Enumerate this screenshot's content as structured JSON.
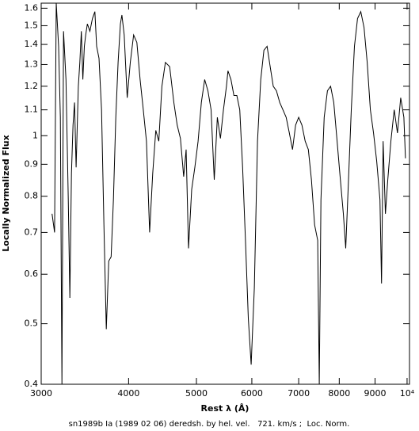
{
  "chart_data": {
    "type": "line",
    "xlabel": "Rest λ (Å)",
    "ylabel": "Locally Normalized Flux",
    "note": "sn1989b Ia (1989 02 06) deredsh. by hel. vel.   721. km/s ;  Loc. Norm.",
    "xlog": true,
    "ylog": true,
    "color": "#000000",
    "xlim": [
      3000,
      10080
    ],
    "ylim": [
      0.4,
      1.63
    ],
    "xticks": [
      3000,
      4000,
      5000,
      6000,
      7000,
      8000,
      9000,
      {
        "value": 10000,
        "label": "10⁴"
      }
    ],
    "yticks": [
      {
        "value": 0.4,
        "label": "0.4"
      },
      {
        "value": 0.5,
        "label": "0.5"
      },
      {
        "value": 0.6,
        "label": "0.6"
      },
      {
        "value": 0.7,
        "label": "0.7"
      },
      {
        "value": 0.8,
        "label": "0.8"
      },
      {
        "value": 0.9,
        "label": "0.9"
      },
      1,
      {
        "value": 1.1,
        "label": "1.1"
      },
      {
        "value": 1.2,
        "label": "1.2"
      },
      {
        "value": 1.3,
        "label": "1.3"
      },
      {
        "value": 1.4,
        "label": "1.4"
      },
      {
        "value": 1.5,
        "label": "1.5"
      },
      {
        "value": 1.6,
        "label": "1.6"
      }
    ],
    "x": [
      3109,
      3135,
      3152,
      3177,
      3195,
      3212,
      3229,
      3255,
      3280,
      3297,
      3314,
      3331,
      3348,
      3365,
      3390,
      3407,
      3424,
      3441,
      3458,
      3473,
      3492,
      3522,
      3551,
      3580,
      3600,
      3629,
      3659,
      3688,
      3717,
      3747,
      3776,
      3805,
      3835,
      3864,
      3893,
      3913,
      3942,
      3981,
      4022,
      4066,
      4110,
      4154,
      4198,
      4242,
      4286,
      4330,
      4374,
      4418,
      4463,
      4514,
      4578,
      4642,
      4693,
      4744,
      4795,
      4834,
      4872,
      4923,
      4974,
      5027,
      5082,
      5137,
      5192,
      5247,
      5302,
      5356,
      5411,
      5465,
      5519,
      5547,
      5602,
      5656,
      5711,
      5766,
      5821,
      5876,
      5931,
      5986,
      6049,
      6113,
      6178,
      6243,
      6308,
      6373,
      6438,
      6506,
      6577,
      6647,
      6718,
      6788,
      6859,
      6929,
      7000,
      7075,
      7151,
      7226,
      7301,
      7377,
      7452,
      7490,
      7532,
      7613,
      7694,
      7776,
      7857,
      7938,
      8022,
      8108,
      8172,
      8237,
      8323,
      8409,
      8495,
      8587,
      8679,
      8771,
      8863,
      8955,
      9048,
      9145,
      9193,
      9241,
      9313,
      9386,
      9482,
      9586,
      9689,
      9793,
      9896,
      9948
    ],
    "values": [
      0.75,
      0.7,
      1.63,
      1.39,
      1.07,
      0.4,
      1.47,
      1.23,
      0.79,
      0.55,
      0.87,
      1.04,
      1.13,
      0.89,
      1.2,
      1.31,
      1.47,
      1.23,
      1.39,
      1.45,
      1.51,
      1.47,
      1.54,
      1.58,
      1.39,
      1.33,
      1.1,
      0.72,
      0.49,
      0.63,
      0.64,
      0.79,
      1.07,
      1.31,
      1.51,
      1.56,
      1.45,
      1.15,
      1.31,
      1.45,
      1.41,
      1.23,
      1.1,
      0.98,
      0.7,
      0.87,
      1.02,
      0.98,
      1.2,
      1.31,
      1.29,
      1.13,
      1.04,
      0.99,
      0.86,
      0.95,
      0.66,
      0.82,
      0.89,
      0.98,
      1.13,
      1.23,
      1.18,
      1.1,
      0.85,
      1.07,
      0.99,
      1.1,
      1.2,
      1.27,
      1.23,
      1.16,
      1.16,
      1.1,
      0.89,
      0.68,
      0.51,
      0.43,
      0.57,
      0.98,
      1.23,
      1.37,
      1.39,
      1.29,
      1.2,
      1.18,
      1.13,
      1.1,
      1.07,
      1.01,
      0.95,
      1.04,
      1.07,
      1.04,
      0.98,
      0.95,
      0.85,
      0.72,
      0.68,
      0.4,
      0.79,
      1.07,
      1.18,
      1.2,
      1.13,
      0.99,
      0.86,
      0.75,
      0.66,
      0.82,
      1.1,
      1.39,
      1.54,
      1.58,
      1.49,
      1.31,
      1.1,
      1.01,
      0.91,
      0.79,
      0.58,
      0.98,
      0.75,
      0.85,
      0.98,
      1.1,
      1.01,
      1.15,
      1.07,
      0.92
    ]
  }
}
